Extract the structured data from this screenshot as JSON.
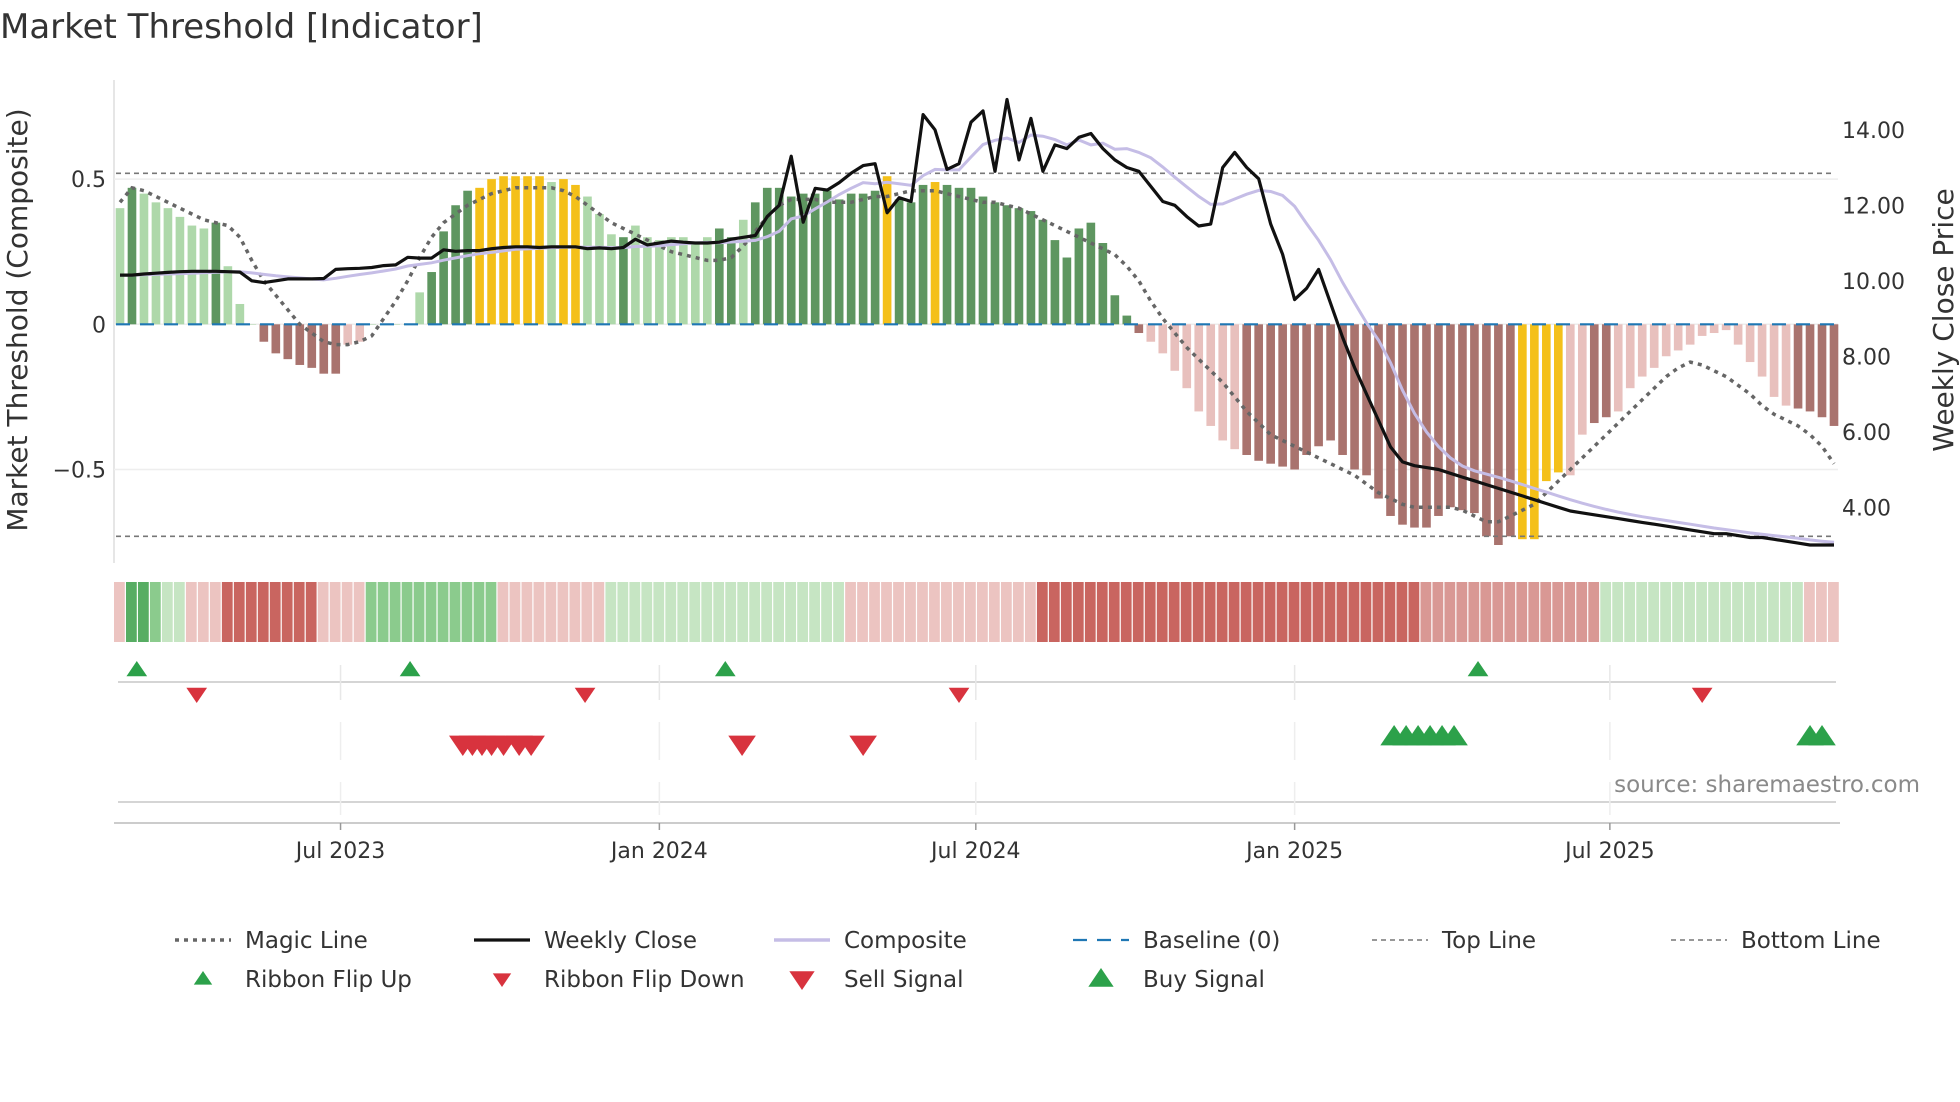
{
  "chart_data": {
    "type": "bar",
    "title": "Market Threshold [Indicator]",
    "ylabel_left": "Market Threshold (Composite)",
    "ylabel_right": "Weekly Close Price",
    "source": "source: sharemaestro.com",
    "left_axis": {
      "ylim": [
        -0.76,
        0.8
      ],
      "ticks": [
        0.5,
        0,
        -0.5
      ],
      "tick_labels": [
        "0.5",
        "0",
        "−0.5"
      ]
    },
    "right_axis": {
      "ylim": [
        3.0,
        15.0
      ],
      "ticks": [
        14,
        12,
        10,
        8,
        6,
        4
      ],
      "tick_labels": [
        "14.00",
        "12.00",
        "10.00",
        "8.00",
        "6.00",
        "4.00"
      ]
    },
    "x_axis": {
      "first_week": "2023-03-12",
      "week_count": 144,
      "ticks": [
        {
          "label": "Jul 2023",
          "week": 18.4
        },
        {
          "label": "Jan 2024",
          "week": 45.0
        },
        {
          "label": "Jul 2024",
          "week": 71.4
        },
        {
          "label": "Jan 2025",
          "week": 98.0
        },
        {
          "label": "Jul 2025",
          "week": 124.3
        }
      ]
    },
    "reference_lines": {
      "top_line": 0.52,
      "bottom_line": -0.73,
      "baseline": 0
    },
    "composite_bars": [
      0.4,
      0.47,
      0.45,
      0.42,
      0.4,
      0.37,
      0.34,
      0.33,
      0.35,
      0.2,
      0.07,
      0,
      -0.06,
      -0.1,
      -0.12,
      -0.14,
      -0.15,
      -0.17,
      -0.17,
      -0.07,
      -0.06,
      0,
      0,
      0,
      0,
      0.11,
      0.18,
      0.32,
      0.41,
      0.46,
      0.47,
      0.5,
      0.51,
      0.51,
      0.51,
      0.51,
      0.49,
      0.5,
      0.48,
      0.44,
      0.38,
      0.31,
      0.3,
      0.34,
      0.3,
      0.29,
      0.3,
      0.3,
      0.28,
      0.3,
      0.33,
      0.3,
      0.36,
      0.42,
      0.47,
      0.47,
      0.44,
      0.45,
      0.45,
      0.46,
      0.43,
      0.45,
      0.45,
      0.46,
      0.51,
      0.43,
      0.42,
      0.48,
      0.49,
      0.48,
      0.47,
      0.47,
      0.44,
      0.42,
      0.41,
      0.4,
      0.39,
      0.36,
      0.29,
      0.23,
      0.33,
      0.35,
      0.28,
      0.1,
      0.03,
      -0.03,
      -0.06,
      -0.1,
      -0.16,
      -0.22,
      -0.3,
      -0.35,
      -0.4,
      -0.43,
      -0.45,
      -0.47,
      -0.48,
      -0.49,
      -0.5,
      -0.45,
      -0.42,
      -0.4,
      -0.45,
      -0.5,
      -0.52,
      -0.6,
      -0.66,
      -0.69,
      -0.7,
      -0.7,
      -0.66,
      -0.63,
      -0.64,
      -0.65,
      -0.73,
      -0.76,
      -0.73,
      -0.74,
      -0.74,
      -0.54,
      -0.51,
      -0.52,
      -0.38,
      -0.34,
      -0.32,
      -0.3,
      -0.22,
      -0.18,
      -0.15,
      -0.11,
      -0.09,
      -0.07,
      -0.04,
      -0.03,
      -0.02,
      -0.07,
      -0.13,
      -0.18,
      -0.25,
      -0.28,
      -0.29,
      -0.3,
      -0.32,
      -0.35
    ],
    "bar_shades": "LDLLLLLLDLLLDDDDDDDLLLLLLLDDDDYYYYYYLYYLLLDLLLLLLLDDLDDDDDDDDDDDYDDDYDDDDDDDDDDDDDDDDDLLLLLLLLDDDDDDDDDDDDDDDDDDDDDDDYYYYLLDDLLLLLLLLLLLLLLLDDDDDDDDDDDDY",
    "weekly_close": [
      10.15,
      10.15,
      10.18,
      10.2,
      10.22,
      10.24,
      10.25,
      10.25,
      10.25,
      10.24,
      10.23,
      10.0,
      9.95,
      10.0,
      10.05,
      10.05,
      10.05,
      10.06,
      10.3,
      10.32,
      10.33,
      10.35,
      10.4,
      10.42,
      10.62,
      10.6,
      10.6,
      10.82,
      10.78,
      10.8,
      10.8,
      10.85,
      10.88,
      10.9,
      10.9,
      10.88,
      10.9,
      10.9,
      10.9,
      10.85,
      10.87,
      10.85,
      10.88,
      11.1,
      10.95,
      11.0,
      11.05,
      11.02,
      11.0,
      11.0,
      11.02,
      11.1,
      11.15,
      11.2,
      11.7,
      12.0,
      13.3,
      11.55,
      12.45,
      12.4,
      12.6,
      12.85,
      13.05,
      13.1,
      11.8,
      12.2,
      12.1,
      14.4,
      14.0,
      12.95,
      13.1,
      14.2,
      14.5,
      12.9,
      14.8,
      13.2,
      14.3,
      12.9,
      13.6,
      13.5,
      13.8,
      13.9,
      13.5,
      13.2,
      13.0,
      12.9,
      12.5,
      12.1,
      12.0,
      11.7,
      11.45,
      11.5,
      13.0,
      13.4,
      13.0,
      12.7,
      11.5,
      10.7,
      9.5,
      9.8,
      10.3,
      9.4,
      8.5,
      7.7,
      7.0,
      6.3,
      5.6,
      5.2,
      5.1,
      5.05,
      5.0,
      4.9,
      4.8,
      4.7,
      4.6,
      4.5,
      4.4,
      4.3,
      4.2,
      4.1,
      4.0,
      3.9,
      3.85,
      3.8,
      3.75,
      3.7,
      3.65,
      3.6,
      3.55,
      3.5,
      3.45,
      3.4,
      3.35,
      3.3,
      3.3,
      3.25,
      3.2,
      3.2,
      3.15,
      3.1,
      3.05,
      3.0,
      3.0,
      3.0
    ],
    "magic_line": [
      0.42,
      0.47,
      0.46,
      0.44,
      0.42,
      0.4,
      0.38,
      0.36,
      0.35,
      0.34,
      0.3,
      0.22,
      0.15,
      0.1,
      0.05,
      0,
      -0.03,
      -0.06,
      -0.07,
      -0.07,
      -0.06,
      -0.04,
      0.02,
      0.08,
      0.15,
      0.23,
      0.3,
      0.35,
      0.38,
      0.41,
      0.43,
      0.45,
      0.46,
      0.47,
      0.47,
      0.47,
      0.47,
      0.46,
      0.44,
      0.41,
      0.38,
      0.35,
      0.33,
      0.31,
      0.29,
      0.27,
      0.25,
      0.24,
      0.23,
      0.22,
      0.22,
      0.23,
      0.27,
      0.32,
      0.37,
      0.41,
      0.43,
      0.43,
      0.43,
      0.42,
      0.42,
      0.42,
      0.43,
      0.44,
      0.44,
      0.45,
      0.46,
      0.46,
      0.46,
      0.45,
      0.44,
      0.43,
      0.42,
      0.42,
      0.41,
      0.4,
      0.38,
      0.36,
      0.34,
      0.32,
      0.3,
      0.28,
      0.26,
      0.24,
      0.2,
      0.15,
      0.08,
      0.02,
      -0.03,
      -0.08,
      -0.12,
      -0.16,
      -0.2,
      -0.25,
      -0.3,
      -0.34,
      -0.38,
      -0.4,
      -0.42,
      -0.44,
      -0.46,
      -0.48,
      -0.5,
      -0.52,
      -0.55,
      -0.58,
      -0.6,
      -0.62,
      -0.63,
      -0.63,
      -0.63,
      -0.63,
      -0.64,
      -0.66,
      -0.68,
      -0.68,
      -0.66,
      -0.64,
      -0.62,
      -0.58,
      -0.54,
      -0.5,
      -0.46,
      -0.42,
      -0.38,
      -0.34,
      -0.3,
      -0.26,
      -0.22,
      -0.18,
      -0.15,
      -0.13,
      -0.14,
      -0.16,
      -0.18,
      -0.21,
      -0.24,
      -0.28,
      -0.31,
      -0.33,
      -0.35,
      -0.38,
      -0.42,
      -0.48
    ],
    "ribbon_shades": "ZGGLPPZZZRRRRRRRRZZZZLLLLLLLLLLLZZZZZZZZZPPPPPPPPPPPPPPPPPPPPZZZZZZZZZZZZZZZZRRRRRRRRRRRRRRRRRRRRRRRRRRRRRRRRRRRRRRRRRRRRRRRPPPPPPPPPPPPPPPPPZZZZZZZZZZZ",
    "ribbon_flip_up_weeks": [
      1.4,
      24.2,
      50.5,
      113.3
    ],
    "ribbon_flip_down_weeks": [
      6.4,
      38.8,
      70.0,
      132.0
    ],
    "sell_signal_weeks": [
      28.6,
      29.4,
      30.2,
      31.0,
      32.0,
      33.3,
      34.3,
      51.9,
      62.0
    ],
    "buy_signal_weeks": [
      106.3,
      107.3,
      108.3,
      109.3,
      110.3,
      111.3,
      141.0,
      142.0
    ],
    "colors": {
      "bar_light_green": "#aed8aa",
      "bar_dark_green": "#5e9660",
      "bar_yellow": "#f4c019",
      "bar_light_red": "#e8c0bd",
      "bar_dark_red": "#a9736e",
      "weekly_close": "#111111",
      "composite_line": "#c5bde6",
      "magic_line": "#666666",
      "baseline": "#1f77b4",
      "threshold_line": "#777777",
      "ribbon_green_strong": "#57ad63",
      "ribbon_green": "#8bcb8d",
      "ribbon_green_pale": "#c6e5c3",
      "ribbon_red_strong": "#c96560",
      "ribbon_red": "#d99894",
      "ribbon_red_pale": "#ecc4c1",
      "marker_up": "#2ca14a",
      "marker_down": "#d8333e"
    },
    "legend": [
      {
        "label": "Magic Line",
        "symbol": "dotted-line"
      },
      {
        "label": "Weekly Close",
        "symbol": "solid-line"
      },
      {
        "label": "Composite",
        "symbol": "lavender-line"
      },
      {
        "label": "Baseline (0)",
        "symbol": "dashed-line"
      },
      {
        "label": "Top Line",
        "symbol": "thin-dashed-line"
      },
      {
        "label": "Bottom Line",
        "symbol": "thin-dashed-line"
      },
      {
        "label": "Ribbon Flip Up",
        "symbol": "triangle-up-small"
      },
      {
        "label": "Ribbon Flip Down",
        "symbol": "triangle-down-small"
      },
      {
        "label": "Sell Signal",
        "symbol": "triangle-down-large"
      },
      {
        "label": "Buy Signal",
        "symbol": "triangle-up-large"
      }
    ]
  }
}
